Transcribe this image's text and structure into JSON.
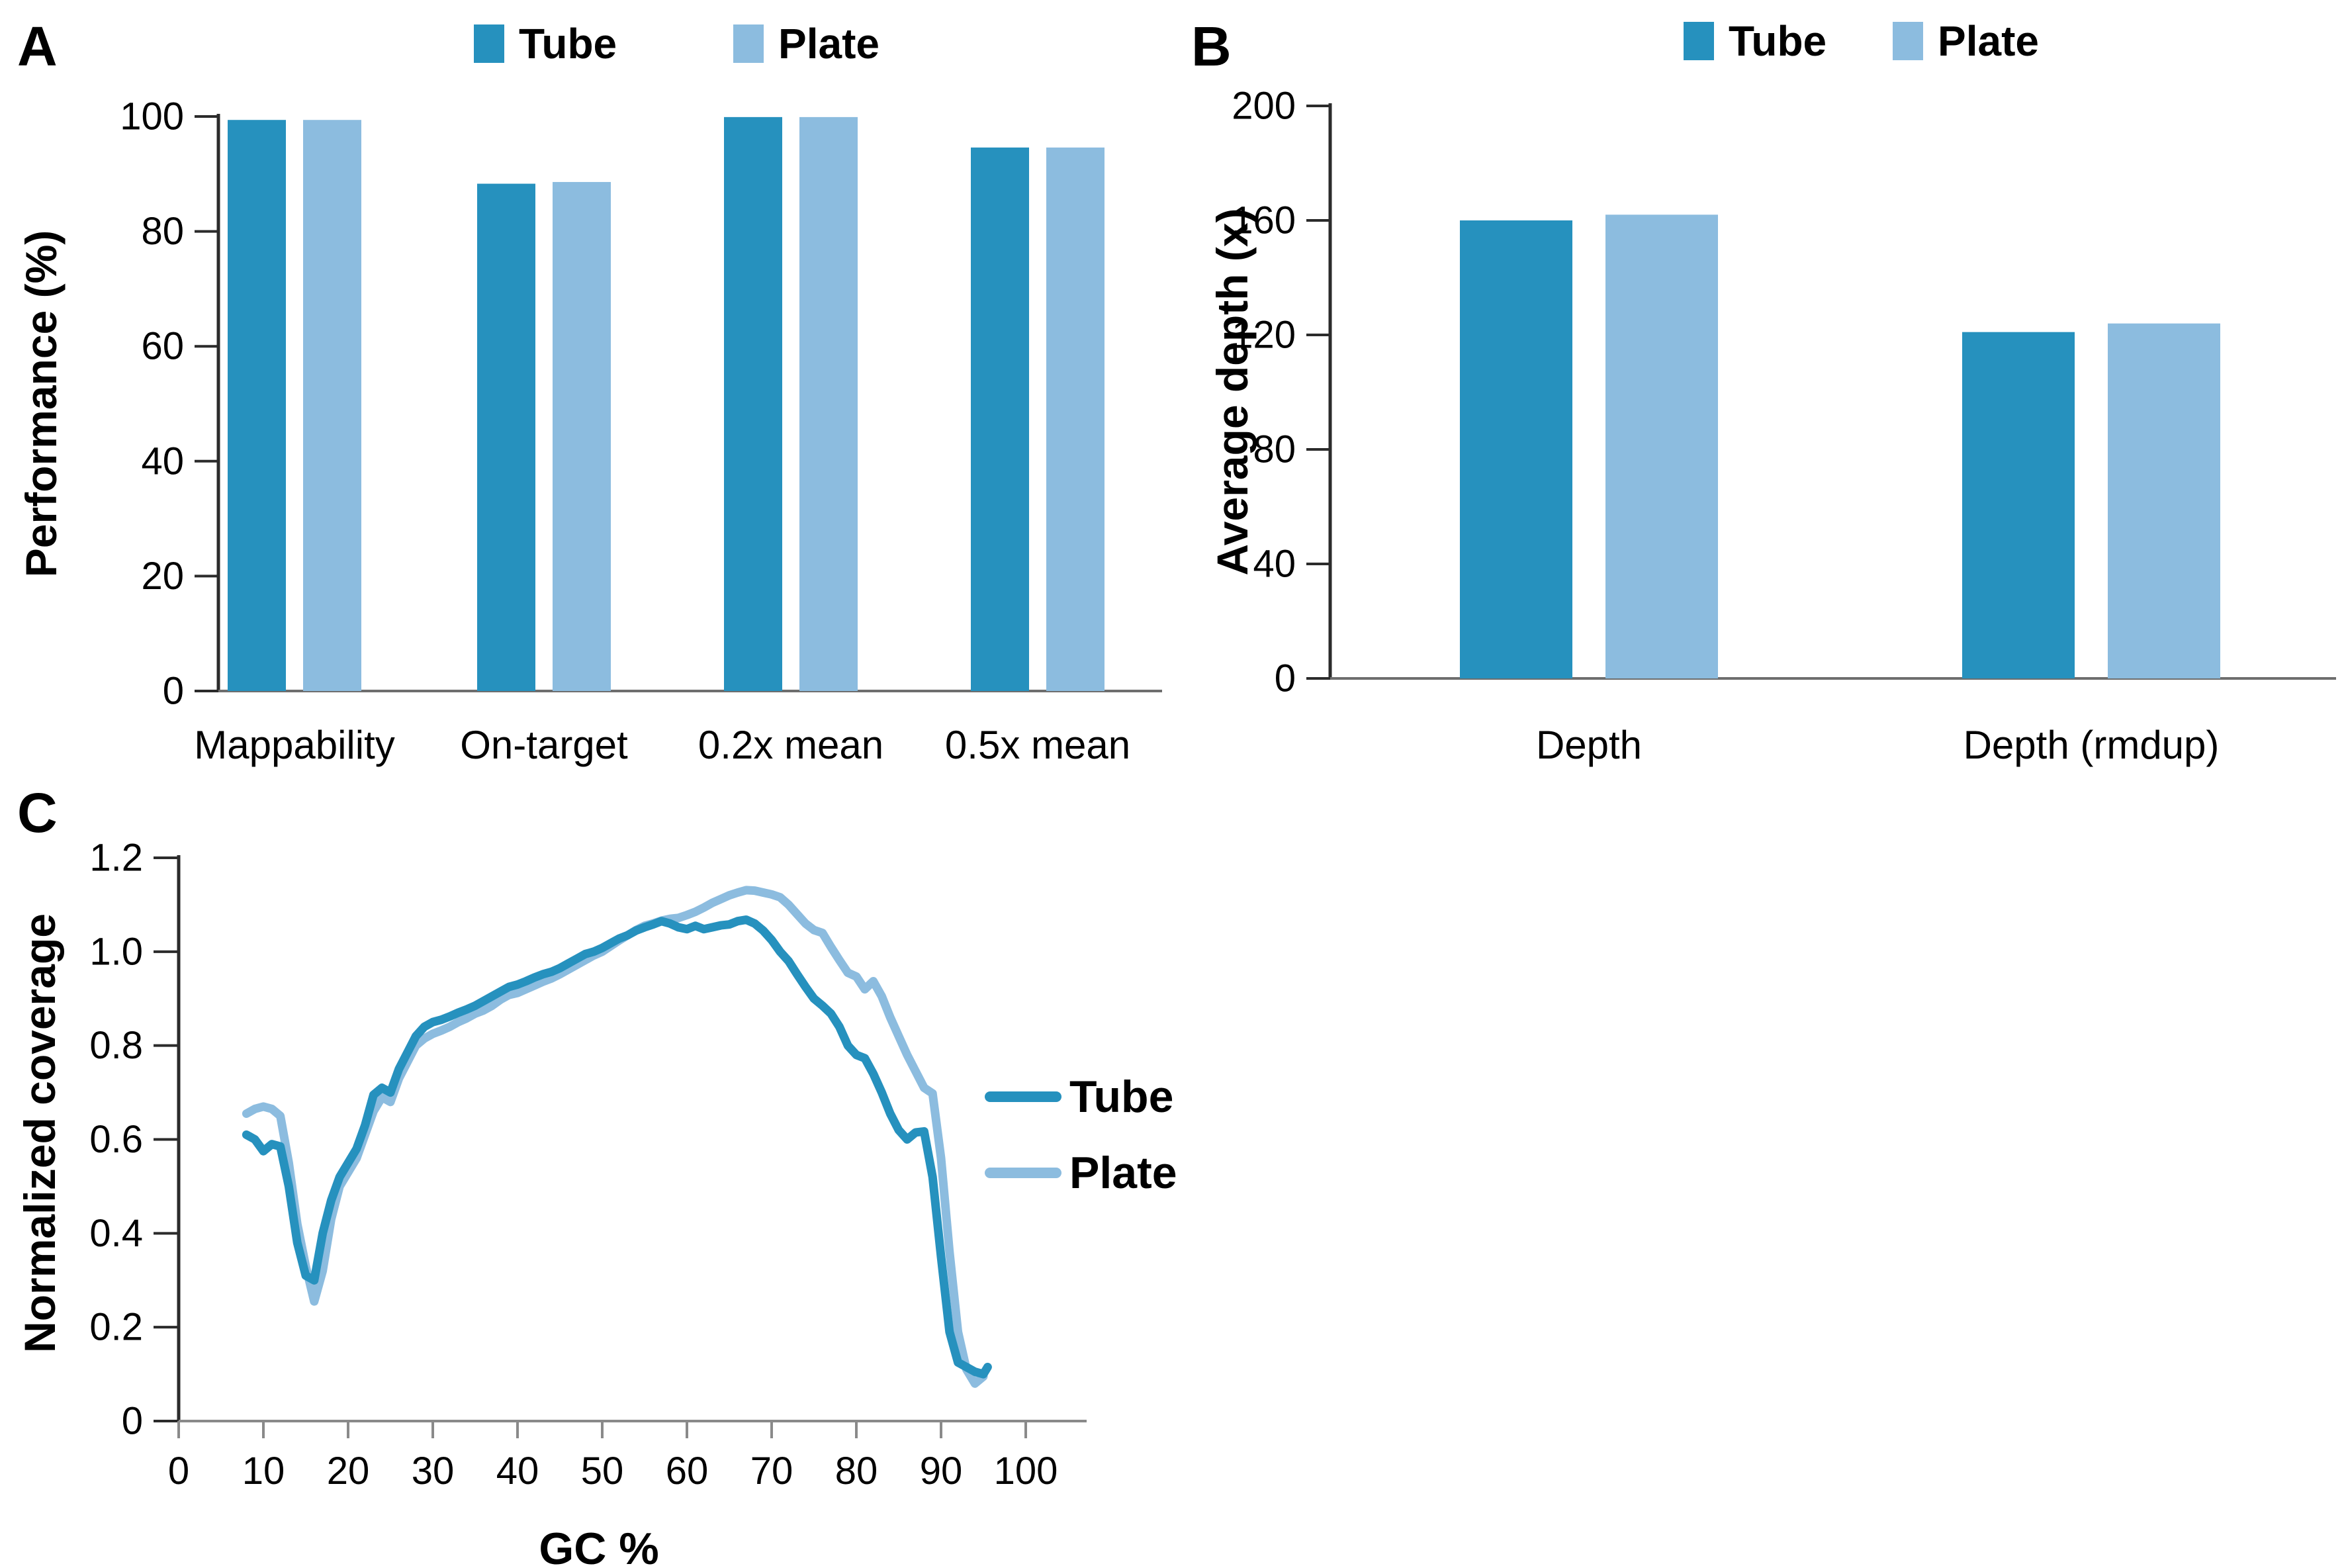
{
  "figure": {
    "colors": {
      "tube": "#2691BE",
      "plate": "#8CBCDF"
    },
    "background": "#FFFFFF"
  },
  "panels": {
    "a": {
      "letter": "A"
    },
    "b": {
      "letter": "B"
    },
    "c": {
      "letter": "C"
    }
  },
  "chart_data": [
    {
      "panel": "A",
      "type": "bar",
      "categories": [
        "Mappability",
        "On-target",
        "0.2x mean",
        "0.5x mean"
      ],
      "series": [
        {
          "name": "Tube",
          "values": [
            99.4,
            88.3,
            99.9,
            94.6
          ]
        },
        {
          "name": "Plate",
          "values": [
            99.4,
            88.6,
            99.9,
            94.6
          ]
        }
      ],
      "xlabel": "",
      "ylabel": "Performance (%)",
      "ylim": [
        0,
        100
      ],
      "yticks": [
        0,
        20,
        40,
        60,
        80,
        100
      ],
      "legend_position": "top",
      "grid": false
    },
    {
      "panel": "B",
      "type": "bar",
      "categories": [
        "Depth",
        "Depth (rmdup)"
      ],
      "series": [
        {
          "name": "Tube",
          "values": [
            160,
            121
          ]
        },
        {
          "name": "Plate",
          "values": [
            162,
            124
          ]
        }
      ],
      "xlabel": "",
      "ylabel": "Average depth (x)",
      "ylim": [
        0,
        200
      ],
      "yticks": [
        0,
        40,
        80,
        120,
        160,
        200
      ],
      "legend_position": "top",
      "grid": false
    },
    {
      "panel": "C",
      "type": "line",
      "xlabel": "GC %",
      "ylabel": "Normalized coverage",
      "xlim": [
        0,
        100
      ],
      "ylim": [
        0,
        1.2
      ],
      "xticks": [
        0,
        10,
        20,
        30,
        40,
        50,
        60,
        70,
        80,
        90,
        100
      ],
      "yticks": [
        0,
        0.2,
        0.4,
        0.6,
        0.8,
        1,
        1.2
      ],
      "legend_position": "right",
      "grid": false,
      "series": [
        {
          "name": "Tube",
          "x": [
            8,
            9,
            10,
            11,
            12,
            13,
            14,
            15,
            16,
            17,
            18,
            19,
            20,
            21,
            22,
            23,
            24,
            25,
            26,
            27,
            28,
            29,
            30,
            31,
            32,
            33,
            34,
            35,
            36,
            37,
            38,
            39,
            40,
            41,
            42,
            43,
            44,
            45,
            46,
            47,
            48,
            49,
            50,
            51,
            52,
            53,
            54,
            55,
            56,
            57,
            58,
            59,
            60,
            61,
            62,
            63,
            64,
            65,
            66,
            67,
            68,
            69,
            70,
            71,
            72,
            73,
            74,
            75,
            76,
            77,
            78,
            79,
            80,
            81,
            82,
            83,
            84,
            85,
            86,
            87,
            88,
            89,
            90,
            91,
            92,
            93,
            94,
            95,
            95.5
          ],
          "y": [
            0.61,
            0.6,
            0.575,
            0.59,
            0.585,
            0.5,
            0.38,
            0.31,
            0.3,
            0.4,
            0.47,
            0.52,
            0.55,
            0.58,
            0.63,
            0.695,
            0.71,
            0.7,
            0.75,
            0.785,
            0.82,
            0.84,
            0.85,
            0.855,
            0.862,
            0.87,
            0.877,
            0.885,
            0.895,
            0.905,
            0.915,
            0.925,
            0.93,
            0.937,
            0.945,
            0.952,
            0.957,
            0.965,
            0.975,
            0.985,
            0.995,
            1.0,
            1.008,
            1.018,
            1.028,
            1.035,
            1.045,
            1.052,
            1.058,
            1.065,
            1.06,
            1.052,
            1.048,
            1.055,
            1.048,
            1.052,
            1.056,
            1.058,
            1.065,
            1.068,
            1.06,
            1.045,
            1.025,
            1.0,
            0.98,
            0.952,
            0.925,
            0.9,
            0.885,
            0.868,
            0.84,
            0.8,
            0.78,
            0.773,
            0.74,
            0.7,
            0.655,
            0.62,
            0.6,
            0.615,
            0.617,
            0.52,
            0.35,
            0.19,
            0.125,
            0.115,
            0.105,
            0.1,
            0.115
          ]
        },
        {
          "name": "Plate",
          "x": [
            8,
            9,
            10,
            11,
            12,
            13,
            14,
            15,
            16,
            17,
            18,
            19,
            20,
            21,
            22,
            23,
            24,
            25,
            26,
            27,
            28,
            29,
            30,
            31,
            32,
            33,
            34,
            35,
            36,
            37,
            38,
            39,
            40,
            41,
            42,
            43,
            44,
            45,
            46,
            47,
            48,
            49,
            50,
            51,
            52,
            53,
            54,
            55,
            56,
            57,
            58,
            59,
            60,
            61,
            62,
            63,
            64,
            65,
            66,
            67,
            68,
            69,
            70,
            71,
            72,
            73,
            74,
            75,
            76,
            77,
            78,
            79,
            80,
            81,
            82,
            83,
            84,
            85,
            86,
            87,
            88,
            89,
            90,
            91,
            92,
            93,
            94,
            95
          ],
          "y": [
            0.655,
            0.665,
            0.67,
            0.665,
            0.65,
            0.55,
            0.42,
            0.33,
            0.255,
            0.32,
            0.43,
            0.5,
            0.53,
            0.56,
            0.61,
            0.66,
            0.69,
            0.68,
            0.73,
            0.765,
            0.8,
            0.815,
            0.825,
            0.832,
            0.84,
            0.85,
            0.858,
            0.868,
            0.875,
            0.885,
            0.898,
            0.908,
            0.912,
            0.92,
            0.928,
            0.936,
            0.943,
            0.952,
            0.962,
            0.972,
            0.982,
            0.992,
            1.0,
            1.012,
            1.024,
            1.035,
            1.046,
            1.055,
            1.06,
            1.066,
            1.07,
            1.072,
            1.078,
            1.085,
            1.094,
            1.104,
            1.112,
            1.12,
            1.126,
            1.131,
            1.13,
            1.126,
            1.122,
            1.116,
            1.1,
            1.08,
            1.06,
            1.046,
            1.04,
            1.01,
            0.982,
            0.955,
            0.947,
            0.92,
            0.937,
            0.905,
            0.86,
            0.82,
            0.78,
            0.745,
            0.71,
            0.698,
            0.56,
            0.36,
            0.19,
            0.11,
            0.08,
            0.095
          ]
        }
      ]
    }
  ]
}
